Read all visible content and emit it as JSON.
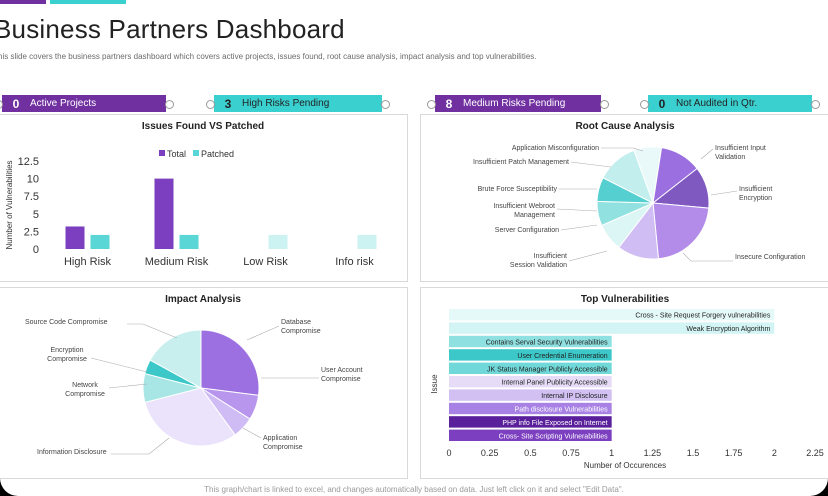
{
  "title": "Business Partners Dashboard",
  "subtitle": "his slide covers the business partners dashboard which covers active projects, issues found, root cause analysis, impact analysis and top vulnerabilities.",
  "footer": "This graph/chart is linked to excel, and changes automatically based on data. Just left click on it and select \"Edit Data\".",
  "colors": {
    "purple": "#7030a0",
    "teal": "#3bd0d0",
    "light_purple": "#b9a4e6",
    "light_teal": "#c5f0f0"
  },
  "kpis": [
    {
      "value": "0",
      "label": "Active Projects",
      "color": "#7030a0"
    },
    {
      "value": "3",
      "label": "High Risks Pending",
      "color": "#3bd0d0"
    },
    {
      "value": "8",
      "label": "Medium Risks Pending",
      "color": "#7030a0"
    },
    {
      "value": "0",
      "label": "Not Audited in Qtr.",
      "color": "#3bd0d0"
    }
  ],
  "chart_data": [
    {
      "type": "bar",
      "title": "Issues Found VS Patched",
      "ylabel": "Number of Vulnerabilities",
      "categories": [
        "High Risk",
        "Medium Risk",
        "Low Risk",
        "Info risk"
      ],
      "ylim": [
        0,
        12.5
      ],
      "yticks": [
        "0",
        "2.5",
        "5",
        "7.5",
        "10",
        "12.5"
      ],
      "legend": "top",
      "series": [
        {
          "name": "Total",
          "values": [
            3.2,
            10,
            0,
            0
          ],
          "color": "#7b3fbf"
        },
        {
          "name": "Patched",
          "values": [
            2,
            2,
            2,
            2
          ],
          "color": "#5ad6d6"
        }
      ]
    },
    {
      "type": "pie",
      "title": "Root Cause Analysis",
      "labels": [
        "Application Misconfiguration",
        "Insufficient Input Validation",
        "Insufficient Encryption",
        "Insecure Configuration",
        "Insufficient Session Validation",
        "Server Configuration",
        "Insufficient Webroot Management",
        "Brute Force Susceptibility",
        "Insufficient Patch Management"
      ],
      "values": [
        8,
        12,
        12,
        22,
        12,
        8,
        7,
        7,
        12
      ],
      "colors": [
        "#e9f9f9",
        "#9c6fe0",
        "#7f58c0",
        "#b28ce8",
        "#d0bdf4",
        "#dcf5f5",
        "#92e1e1",
        "#55cfcf",
        "#c2eeee"
      ]
    },
    {
      "type": "pie",
      "title": "Impact Analysis",
      "labels": [
        "Database Compromise",
        "User Account Compromise",
        "Application Compromise",
        "Information Disclosure",
        "Network Compromise",
        "Encryption Compromise",
        "Source Code Compromise"
      ],
      "values": [
        27,
        7,
        6,
        31,
        8,
        4,
        17
      ],
      "colors": [
        "#9c70e0",
        "#b896ee",
        "#cfbcf5",
        "#ebe3fb",
        "#a8e6e6",
        "#3cc8c8",
        "#c8eeee"
      ]
    },
    {
      "type": "bar",
      "orientation": "horizontal",
      "title": "Top Vulnerabilities",
      "xlabel": "Number of Occurences",
      "ylabel": "Issue",
      "xlim": [
        0,
        2.25
      ],
      "xticks": [
        "0",
        "0.25",
        "0.5",
        "0.75",
        "1",
        "1.25",
        "1.5",
        "1.75",
        "2",
        "2.25"
      ],
      "categories": [
        "Cross - Site Request Forgery vulnerabilities",
        "Weak Encryption Algorithm",
        "Contains Serval Security Vulnerabilities",
        "User Credential Enumeration",
        "JK Status Manager Publicly Accessible",
        "Internal Panel Publicity Accessible",
        "Internal IP Disclosure",
        "Path disclosure Vulnerabilities",
        "PHP  info File Exposed on Internet",
        "Cross- Site Scripting Vulnerabilities"
      ],
      "values": [
        2,
        2,
        1,
        1,
        1,
        1,
        1,
        1,
        1,
        1
      ],
      "colors": [
        "#e6f9f9",
        "#d3f4f4",
        "#8fe0e0",
        "#3cc8c8",
        "#70d8d8",
        "#e7dcf8",
        "#d2c0f2",
        "#a881e4",
        "#5a1f9a",
        "#7b3fbf"
      ],
      "text_colors": [
        "#222",
        "#222",
        "#222",
        "#222",
        "#222",
        "#222",
        "#222",
        "#fff",
        "#fff",
        "#fff"
      ]
    }
  ]
}
